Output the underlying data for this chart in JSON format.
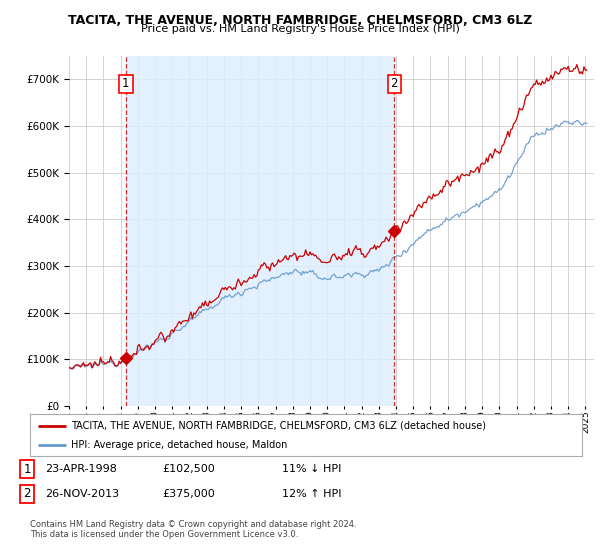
{
  "title": "TACITA, THE AVENUE, NORTH FAMBRIDGE, CHELMSFORD, CM3 6LZ",
  "subtitle": "Price paid vs. HM Land Registry's House Price Index (HPI)",
  "legend_line1": "TACITA, THE AVENUE, NORTH FAMBRIDGE, CHELMSFORD, CM3 6LZ (detached house)",
  "legend_line2": "HPI: Average price, detached house, Maldon",
  "annotation1_date": "23-APR-1998",
  "annotation1_price": "£102,500",
  "annotation1_hpi": "11% ↓ HPI",
  "annotation2_date": "26-NOV-2013",
  "annotation2_price": "£375,000",
  "annotation2_hpi": "12% ↑ HPI",
  "footer": "Contains HM Land Registry data © Crown copyright and database right 2024.\nThis data is licensed under the Open Government Licence v3.0.",
  "sale1_year": 1998.3,
  "sale1_value": 102500,
  "sale2_year": 2013.9,
  "sale2_value": 375000,
  "price_color": "#cc0000",
  "hpi_color": "#6699cc",
  "shade_color": "#ddeeff",
  "vline_color": "#cc0000",
  "grid_color": "#cccccc",
  "background_color": "#ffffff",
  "ylim": [
    0,
    750000
  ],
  "xlim_start": 1995.0,
  "xlim_end": 2025.5
}
